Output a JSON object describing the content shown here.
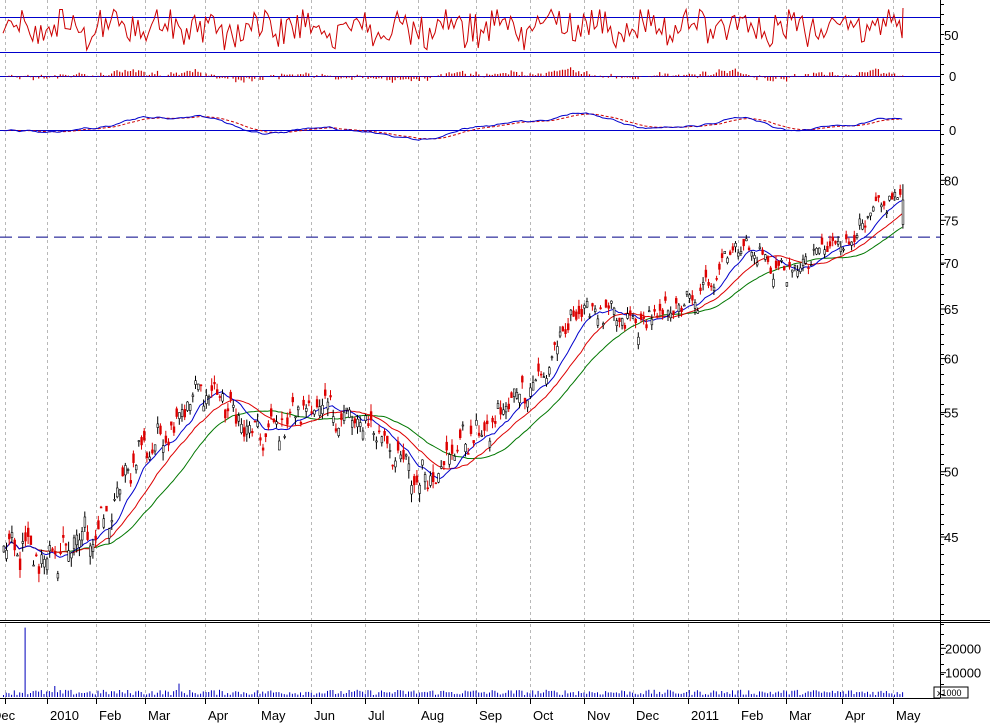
{
  "colors": {
    "background": "#ffffff",
    "border": "#000000",
    "grid": "#b8b8b8",
    "candle_up": "#000000",
    "candle_down": "#dd0000",
    "ma_short": "#0000cc",
    "ma_mid": "#dd0000",
    "ma_long": "#007700",
    "resistance": "#000088",
    "rsi_line": "#cc0000",
    "hist": "#cc0000",
    "macd": "#0000cc",
    "macd_signal": "#cc0000",
    "volume": "#0000bb",
    "ref_line": "#0000cc"
  },
  "volume_scale_label": "x1000",
  "chart_data": [
    {
      "type": "line",
      "panel": "rsi",
      "y_ticks": [
        "50"
      ],
      "reference_levels": [
        70,
        50,
        30
      ],
      "oscillation_range": [
        25,
        80
      ]
    },
    {
      "type": "bar",
      "panel": "histogram",
      "y_ticks": [
        "0"
      ],
      "zero_line": 0
    },
    {
      "type": "line",
      "panel": "macd",
      "y_ticks": [
        "0"
      ],
      "zero_line": 0,
      "series": [
        {
          "values_ref": "macd"
        },
        {
          "values_ref": "signal"
        }
      ]
    },
    {
      "type": "candlestick",
      "panel": "price",
      "scale": "log",
      "ylim": [
        40,
        82
      ],
      "y_ticks": [
        "80",
        "75",
        "70",
        "65",
        "60",
        "55",
        "50",
        "45"
      ],
      "resistance_level": 73,
      "x_labels": [
        "Dec",
        "2010",
        "Feb",
        "Mar",
        "Apr",
        "May",
        "Jun",
        "Jul",
        "Aug",
        "Sep",
        "Oct",
        "Nov",
        "Dec",
        "2011",
        "Feb",
        "Mar",
        "Apr",
        "May"
      ],
      "monthly_closes": [
        {
          "x": "Dec",
          "close": 44.0
        },
        {
          "x": "2010",
          "close": 43.5
        },
        {
          "x": "Feb",
          "close": 45.5
        },
        {
          "x": "Mar",
          "close": 52.0
        },
        {
          "x": "Apr",
          "close": 57.0
        },
        {
          "x": "May",
          "close": 53.0
        },
        {
          "x": "Jun",
          "close": 55.5
        },
        {
          "x": "Jul",
          "close": 54.0
        },
        {
          "x": "Aug",
          "close": 49.5
        },
        {
          "x": "Sep",
          "close": 53.0
        },
        {
          "x": "Oct",
          "close": 57.5
        },
        {
          "x": "Nov",
          "close": 65.0
        },
        {
          "x": "Dec",
          "close": 63.5
        },
        {
          "x": "2011",
          "close": 65.5
        },
        {
          "x": "Feb",
          "close": 72.0
        },
        {
          "x": "Mar",
          "close": 69.0
        },
        {
          "x": "Apr",
          "close": 72.5
        },
        {
          "x": "May",
          "close": 77.5
        }
      ],
      "last_high": 79.5,
      "moving_averages": [
        "short",
        "mid",
        "long"
      ]
    },
    {
      "type": "bar",
      "panel": "volume",
      "y_ticks": [
        "20000",
        "10000"
      ],
      "unit": "x1000",
      "ylim": [
        0,
        30000
      ],
      "typical": 2000,
      "spikes": [
        {
          "x": "2010",
          "value": 28500
        },
        {
          "x": "2010",
          "value": 4500
        },
        {
          "x": "Apr",
          "value": 5500
        }
      ]
    }
  ]
}
